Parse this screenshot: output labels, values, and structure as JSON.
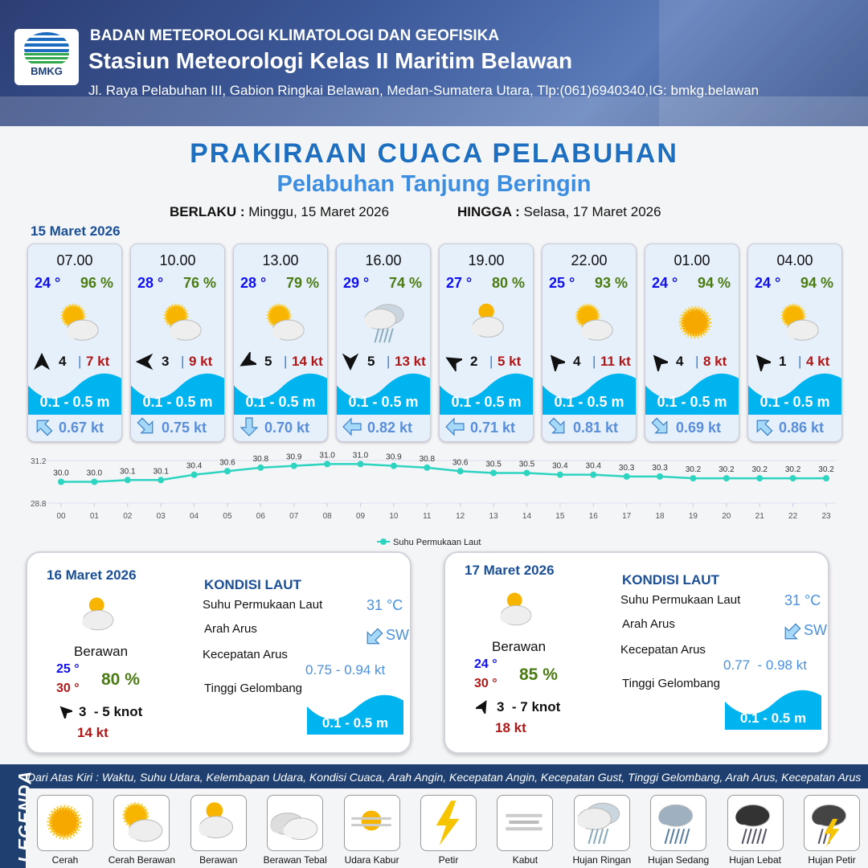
{
  "header": {
    "org": "BADAN METEOROLOGI KLIMATOLOGI DAN GEOFISIKA",
    "station": "Stasiun Meteorologi Kelas II Maritim Belawan",
    "address": "Jl. Raya Pelabuhan III, Gabion Ringkai Belawan, Medan-Sumatera Utara, Tlp:(061)6940340,IG: bmkg.belawan",
    "logo_text": "BMKG"
  },
  "title": "PRAKIRAAN CUACA PELABUHAN",
  "subtitle": "Pelabuhan Tanjung Beringin",
  "validity": {
    "from_label": "BERLAKU :",
    "from": "Minggu, 15 Maret 2026",
    "to_label": "HINGGA :",
    "to": "Selasa, 17 Maret 2026"
  },
  "day1": {
    "date": "15 Maret 2026",
    "cards": [
      {
        "time": "07.00",
        "temp": "24 °",
        "hum": "96 %",
        "icon": "sunny-cloudy",
        "wind_dir_deg": 0,
        "wind": "4",
        "gust": "7 kt",
        "wave": "0.1 - 0.5 m",
        "current_dir_deg": 315,
        "current": "0.67 kt"
      },
      {
        "time": "10.00",
        "temp": "28 °",
        "hum": "76 %",
        "icon": "sunny-cloudy",
        "wind_dir_deg": 270,
        "wind": "3",
        "gust": "9 kt",
        "wave": "0.1 - 0.5 m",
        "current_dir_deg": 135,
        "current": "0.75 kt"
      },
      {
        "time": "13.00",
        "temp": "28 °",
        "hum": "79 %",
        "icon": "sunny-cloudy",
        "wind_dir_deg": 240,
        "wind": "5",
        "gust": "14 kt",
        "wave": "0.1 - 0.5 m",
        "current_dir_deg": 180,
        "current": "0.70 kt"
      },
      {
        "time": "16.00",
        "temp": "29 °",
        "hum": "74 %",
        "icon": "light-rain",
        "wind_dir_deg": 180,
        "wind": "5",
        "gust": "13 kt",
        "wave": "0.1 - 0.5 m",
        "current_dir_deg": 270,
        "current": "0.82 kt"
      },
      {
        "time": "19.00",
        "temp": "27 °",
        "hum": "80 %",
        "icon": "cloudy",
        "wind_dir_deg": 300,
        "wind": "2",
        "gust": "5 kt",
        "wave": "0.1 - 0.5 m",
        "current_dir_deg": 270,
        "current": "0.71 kt"
      },
      {
        "time": "22.00",
        "temp": "25 °",
        "hum": "93 %",
        "icon": "sunny-cloudy",
        "wind_dir_deg": 320,
        "wind": "4",
        "gust": "11 kt",
        "wave": "0.1 - 0.5 m",
        "current_dir_deg": 135,
        "current": "0.81 kt"
      },
      {
        "time": "01.00",
        "temp": "24 °",
        "hum": "94 %",
        "icon": "sunny",
        "wind_dir_deg": 320,
        "wind": "4",
        "gust": "8 kt",
        "wave": "0.1 - 0.5 m",
        "current_dir_deg": 135,
        "current": "0.69 kt"
      },
      {
        "time": "04.00",
        "temp": "24 °",
        "hum": "94 %",
        "icon": "sunny-cloudy",
        "wind_dir_deg": 320,
        "wind": "1",
        "gust": "4 kt",
        "wave": "0.1 - 0.5 m",
        "current_dir_deg": 315,
        "current": "0.86 kt"
      }
    ]
  },
  "chart_data": {
    "type": "line",
    "x": [
      "00",
      "01",
      "02",
      "03",
      "04",
      "05",
      "06",
      "07",
      "08",
      "09",
      "10",
      "11",
      "12",
      "13",
      "14",
      "15",
      "16",
      "17",
      "18",
      "19",
      "20",
      "21",
      "22",
      "23"
    ],
    "series": [
      {
        "name": "Suhu Permukaan Laut",
        "values": [
          30.0,
          30.0,
          30.1,
          30.1,
          30.4,
          30.6,
          30.8,
          30.9,
          31.0,
          31.0,
          30.9,
          30.8,
          30.6,
          30.5,
          30.5,
          30.4,
          30.4,
          30.3,
          30.3,
          30.2,
          30.2,
          30.2,
          30.2,
          30.2
        ],
        "color": "#2dd4bf"
      }
    ],
    "yticks": [
      "31.2",
      "28.8"
    ],
    "ylim": [
      28.8,
      31.2
    ],
    "legend": "bottom",
    "grid": true
  },
  "days": [
    {
      "date": "16 Maret 2026",
      "icon": "cloudy",
      "cond": "Berawan",
      "tmin": "25 °",
      "tmax": "30 °",
      "hum": "80 %",
      "wind": "3  - 5 knot",
      "wind_dir_deg": 315,
      "gust": "14 kt",
      "sea_title": "KONDISI LAUT",
      "sst_label": "Suhu Permukaan Laut",
      "sst": "31 °C",
      "dir_label": "Arah Arus",
      "dir": "SW",
      "speed_label": "Kecepatan Arus",
      "speed": "0.75 - 0.94 kt",
      "wave_label": "Tinggi Gelombang",
      "wave": "0.1 - 0.5 m"
    },
    {
      "date": "17 Maret 2026",
      "icon": "cloudy",
      "cond": "Berawan",
      "tmin": "24 °",
      "tmax": "30 °",
      "hum": "85 %",
      "wind": "3  - 7 knot",
      "wind_dir_deg": 30,
      "gust": "18 kt",
      "sea_title": "KONDISI LAUT",
      "sst_label": "Suhu Permukaan Laut",
      "sst": "31 °C",
      "dir_label": "Arah Arus",
      "dir": "SW",
      "speed_label": "Kecepatan Arus",
      "speed": "0.77  - 0.98 kt",
      "wave_label": "Tinggi Gelombang",
      "wave": "0.1 - 0.5 m"
    }
  ],
  "legend": {
    "title": "LEGENDA",
    "desc": "Dari Atas Kiri : Waktu, Suhu Udara, Kelembapan Udara, Kondisi Cuaca, Arah Angin, Kecepatan Angin, Kecepatan Gust, Tinggi Gelombang, Arah Arus, Kecepatan Arus",
    "items": [
      {
        "label": "Cerah",
        "icon": "sunny"
      },
      {
        "label": "Cerah Berawan",
        "icon": "sunny-cloudy"
      },
      {
        "label": "Berawan",
        "icon": "cloudy"
      },
      {
        "label": "Berawan Tebal",
        "icon": "overcast"
      },
      {
        "label": "Udara Kabur",
        "icon": "haze"
      },
      {
        "label": "Petir",
        "icon": "lightning"
      },
      {
        "label": "Kabut",
        "icon": "fog"
      },
      {
        "label": "Hujan Ringan",
        "icon": "light-rain"
      },
      {
        "label": "Hujan Sedang",
        "icon": "moderate-rain"
      },
      {
        "label": "Hujan Lebat",
        "icon": "heavy-rain"
      },
      {
        "label": "Hujan Petir",
        "icon": "thunderstorm"
      }
    ]
  }
}
